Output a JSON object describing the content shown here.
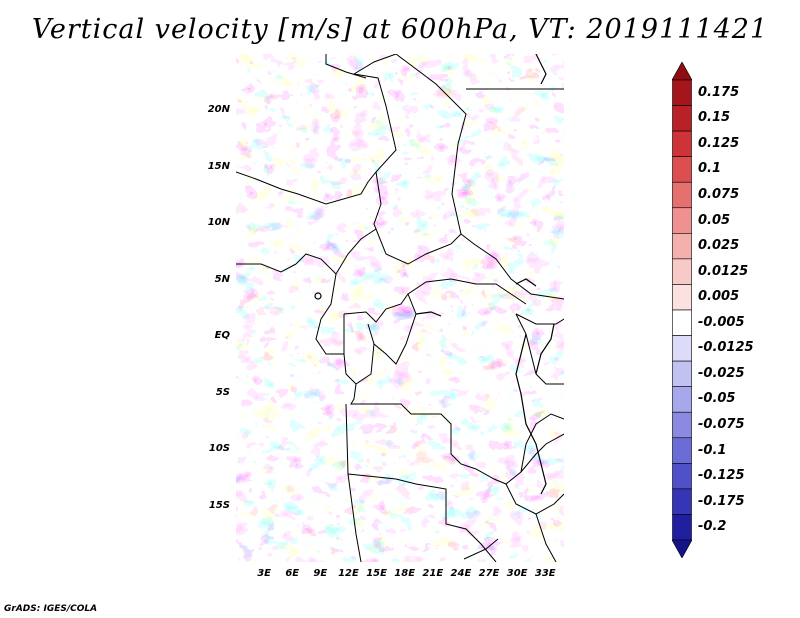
{
  "title": "Vertical velocity [m/s] at 600hPa, VT: 2019111421",
  "footer": "GrADS: IGES/COLA",
  "map": {
    "lon_range": [
      0,
      35
    ],
    "lat_range": [
      -20,
      25
    ],
    "lat_ticks": [
      {
        "value": 20,
        "label": "20N"
      },
      {
        "value": 15,
        "label": "15N"
      },
      {
        "value": 10,
        "label": "10N"
      },
      {
        "value": 5,
        "label": "5N"
      },
      {
        "value": 0,
        "label": "EQ"
      },
      {
        "value": -5,
        "label": "5S"
      },
      {
        "value": -10,
        "label": "10S"
      },
      {
        "value": -15,
        "label": "15S"
      }
    ],
    "lon_ticks": [
      {
        "value": 3,
        "label": "3E"
      },
      {
        "value": 6,
        "label": "6E"
      },
      {
        "value": 9,
        "label": "9E"
      },
      {
        "value": 12,
        "label": "12E"
      },
      {
        "value": 15,
        "label": "15E"
      },
      {
        "value": 18,
        "label": "18E"
      },
      {
        "value": 21,
        "label": "21E"
      },
      {
        "value": 24,
        "label": "24E"
      },
      {
        "value": 27,
        "label": "27E"
      },
      {
        "value": 30,
        "label": "30E"
      },
      {
        "value": 33,
        "label": "33E"
      }
    ]
  },
  "colorbar": {
    "levels": [
      {
        "label": "0.175",
        "color": "#a4161c"
      },
      {
        "label": "0.15",
        "color": "#b82127"
      },
      {
        "label": "0.125",
        "color": "#cd3338"
      },
      {
        "label": "0.1",
        "color": "#dc4e50"
      },
      {
        "label": "0.075",
        "color": "#e6706e"
      },
      {
        "label": "0.05",
        "color": "#ee9190"
      },
      {
        "label": "0.025",
        "color": "#f4b0ad"
      },
      {
        "label": "0.0125",
        "color": "#f8cac7"
      },
      {
        "label": "0.005",
        "color": "#fbe2e0"
      },
      {
        "label": "-0.005",
        "color": "#ffffff"
      },
      {
        "label": "-0.0125",
        "color": "#dcdcf8"
      },
      {
        "label": "-0.025",
        "color": "#c2c2f2"
      },
      {
        "label": "-0.05",
        "color": "#a7a7ec"
      },
      {
        "label": "-0.075",
        "color": "#8a8ae2"
      },
      {
        "label": "-0.1",
        "color": "#6c6cd6"
      },
      {
        "label": "-0.125",
        "color": "#5050c8"
      },
      {
        "label": "-0.175",
        "color": "#3535b6"
      },
      {
        "label": "-0.2",
        "color": "#1f1fa0"
      }
    ],
    "top_triangle_color": "#8e0d12",
    "bottom_triangle_color": "#141488"
  }
}
